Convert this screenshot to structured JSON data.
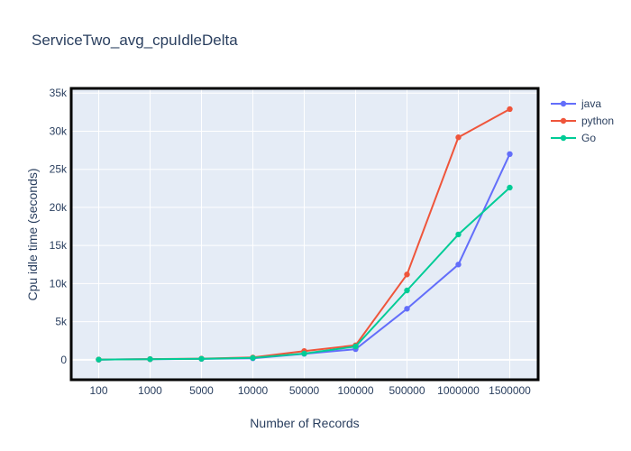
{
  "chart_data": {
    "type": "line",
    "title": "ServiceTwo_avg_cpuIdleDelta",
    "xlabel": "Number of Records",
    "ylabel": "Cpu idle time (seconds)",
    "categories": [
      "100",
      "1000",
      "5000",
      "10000",
      "50000",
      "100000",
      "500000",
      "1000000",
      "1500000"
    ],
    "ylim": [
      -2500,
      35500
    ],
    "yticks": [
      0,
      5000,
      10000,
      15000,
      20000,
      25000,
      30000,
      35000
    ],
    "ytick_labels": [
      "0",
      "5k",
      "10k",
      "15k",
      "20k",
      "25k",
      "30k",
      "35k"
    ],
    "grid": true,
    "legend_position": "top-right",
    "series": [
      {
        "name": "java",
        "color": "#636efa",
        "values": [
          20,
          80,
          120,
          200,
          780,
          1400,
          6700,
          12500,
          27000
        ]
      },
      {
        "name": "python",
        "color": "#ef553b",
        "values": [
          30,
          90,
          150,
          300,
          1150,
          1900,
          11200,
          29200,
          32900
        ]
      },
      {
        "name": "Go",
        "color": "#00cc96",
        "values": [
          25,
          85,
          130,
          250,
          820,
          1750,
          9100,
          16450,
          22600
        ]
      }
    ]
  },
  "colors": {
    "plot_background": "#e5ecf6",
    "grid": "#ffffff",
    "text": "#2a3f5f",
    "frame": "#000000"
  }
}
